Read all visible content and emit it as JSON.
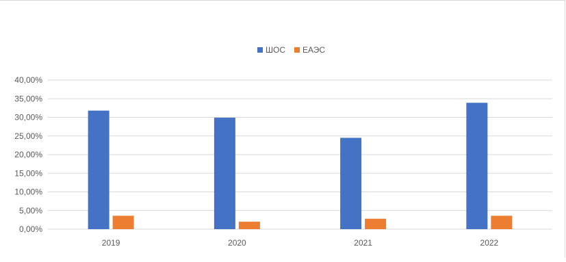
{
  "chart_data": {
    "type": "bar",
    "title": "",
    "xlabel": "",
    "ylabel": "",
    "categories": [
      "2019",
      "2020",
      "2021",
      "2022"
    ],
    "series": [
      {
        "name": "ШОС",
        "color": "#4472C4",
        "values": [
          31.8,
          29.9,
          24.5,
          33.9
        ]
      },
      {
        "name": "ЕАЭС",
        "color": "#ED7D31",
        "values": [
          3.6,
          2.0,
          2.8,
          3.6
        ]
      }
    ],
    "yticks": [
      "0,00%",
      "5,00%",
      "10,00%",
      "15,00%",
      "20,00%",
      "25,00%",
      "30,00%",
      "35,00%",
      "40,00%"
    ],
    "ylim": [
      0,
      40
    ],
    "grid": true,
    "legend_position": "top"
  }
}
